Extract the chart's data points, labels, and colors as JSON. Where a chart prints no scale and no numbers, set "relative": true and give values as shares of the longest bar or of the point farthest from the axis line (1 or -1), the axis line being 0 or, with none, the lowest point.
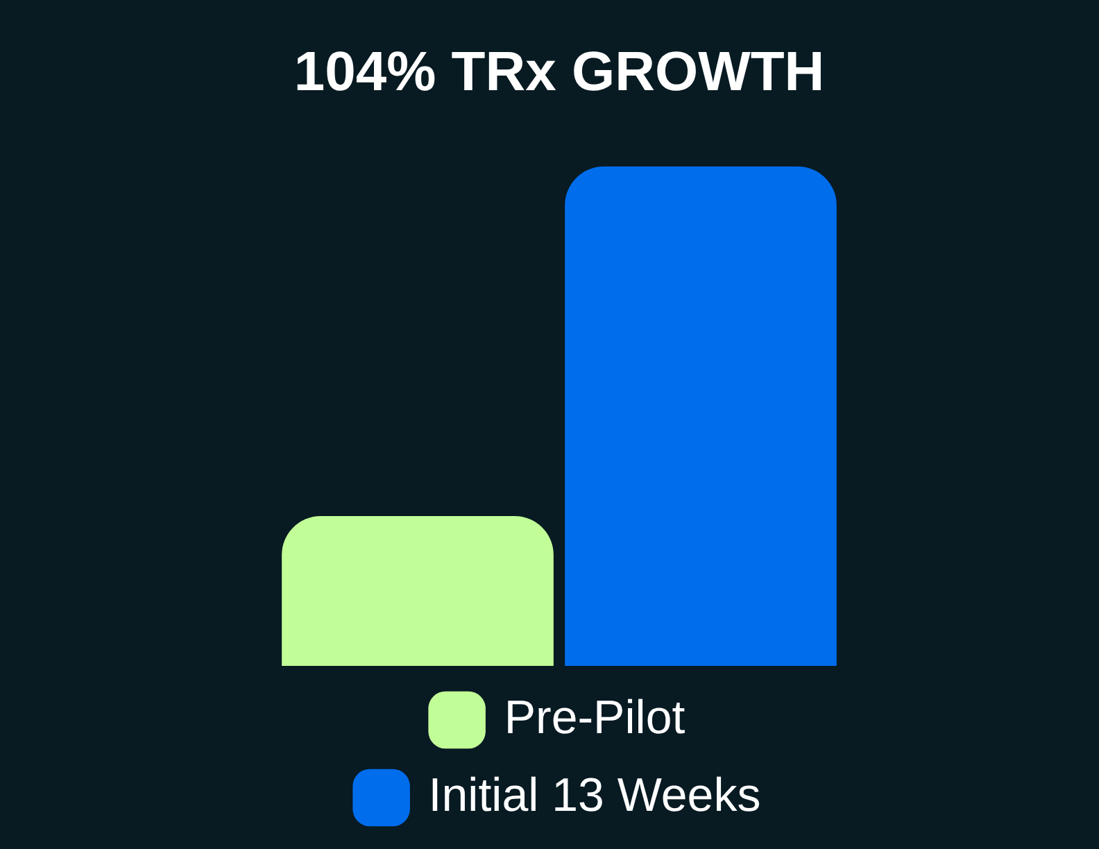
{
  "chart_data": {
    "type": "bar",
    "title": "104% TRx GROWTH",
    "relative": true,
    "categories": [
      null
    ],
    "series": [
      {
        "name": "Pre-Pilot",
        "color": "#c2fe98",
        "values": [
          0.3
        ]
      },
      {
        "name": "Initial 13 Weeks",
        "color": "#006ded",
        "values": [
          1
        ]
      }
    ],
    "legend": "bottom"
  }
}
